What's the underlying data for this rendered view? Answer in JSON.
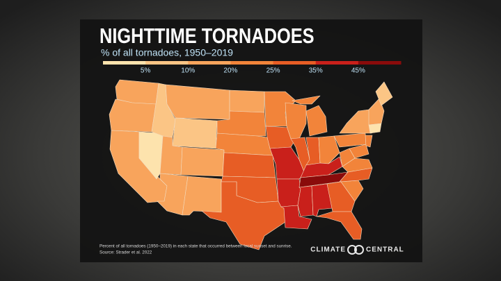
{
  "header": {
    "title": "NIGHTTIME TORNADOES",
    "subtitle": "% of all tornadoes, 1950–2019"
  },
  "legend": {
    "colors": [
      "#fde3ad",
      "#fbc585",
      "#f8a45c",
      "#f2843a",
      "#e75d25",
      "#c9201b",
      "#8a0b0b"
    ],
    "labels": [
      "5%",
      "10%",
      "20%",
      "25%",
      "35%",
      "45%"
    ]
  },
  "footer": {
    "note": "Percent of all tornadoes (1950–2019) in each state that occurred between local sunset and sunrise.",
    "source": "Source: Strader et al. 2022",
    "logo_left": "CLIMATE",
    "logo_right": "CENTRAL"
  }
}
